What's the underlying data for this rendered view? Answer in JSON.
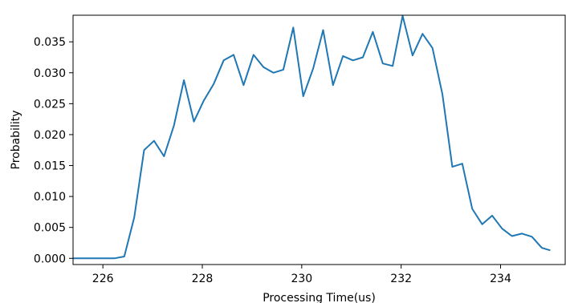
{
  "chart_data": {
    "type": "line",
    "title": "",
    "xlabel": "Processing Time(us)",
    "ylabel": "Probability",
    "xlim": [
      225.4,
      235.3
    ],
    "ylim": [
      -0.001,
      0.0393
    ],
    "grid": false,
    "legend": "none",
    "line_color": "#1f77b4",
    "x_ticks": [
      {
        "value": 226,
        "label": "226"
      },
      {
        "value": 228,
        "label": "228"
      },
      {
        "value": 230,
        "label": "230"
      },
      {
        "value": 232,
        "label": "232"
      },
      {
        "value": 234,
        "label": "234"
      }
    ],
    "y_ticks": [
      {
        "value": 0.0,
        "label": "0.000"
      },
      {
        "value": 0.005,
        "label": "0.005"
      },
      {
        "value": 0.01,
        "label": "0.010"
      },
      {
        "value": 0.015,
        "label": "0.015"
      },
      {
        "value": 0.02,
        "label": "0.020"
      },
      {
        "value": 0.025,
        "label": "0.025"
      },
      {
        "value": 0.03,
        "label": "0.030"
      },
      {
        "value": 0.035,
        "label": "0.035"
      }
    ],
    "series": [
      {
        "x": [
          225.4,
          225.63,
          225.83,
          226.03,
          226.23,
          226.43,
          226.63,
          226.83,
          227.03,
          227.23,
          227.43,
          227.63,
          227.83,
          228.03,
          228.23,
          228.43,
          228.63,
          228.83,
          229.03,
          229.23,
          229.43,
          229.63,
          229.83,
          230.03,
          230.23,
          230.43,
          230.63,
          230.83,
          231.03,
          231.23,
          231.43,
          231.63,
          231.83,
          232.03,
          232.23,
          232.43,
          232.63,
          232.83,
          233.03,
          233.23,
          233.43,
          233.63,
          233.83,
          234.03,
          234.23,
          234.43,
          234.63,
          234.83,
          235.0
        ],
        "y": [
          0.0,
          0.0,
          0.0,
          0.0,
          0.0,
          0.0003,
          0.0066,
          0.0175,
          0.019,
          0.0165,
          0.0215,
          0.0288,
          0.0221,
          0.0255,
          0.0282,
          0.032,
          0.0329,
          0.028,
          0.0329,
          0.0309,
          0.03,
          0.0305,
          0.0373,
          0.0262,
          0.0307,
          0.0369,
          0.028,
          0.0327,
          0.032,
          0.0325,
          0.0366,
          0.0315,
          0.0311,
          0.0392,
          0.0328,
          0.0363,
          0.034,
          0.0265,
          0.0148,
          0.0153,
          0.008,
          0.0055,
          0.0069,
          0.0048,
          0.0036,
          0.004,
          0.0035,
          0.0017,
          0.0013
        ]
      }
    ]
  }
}
